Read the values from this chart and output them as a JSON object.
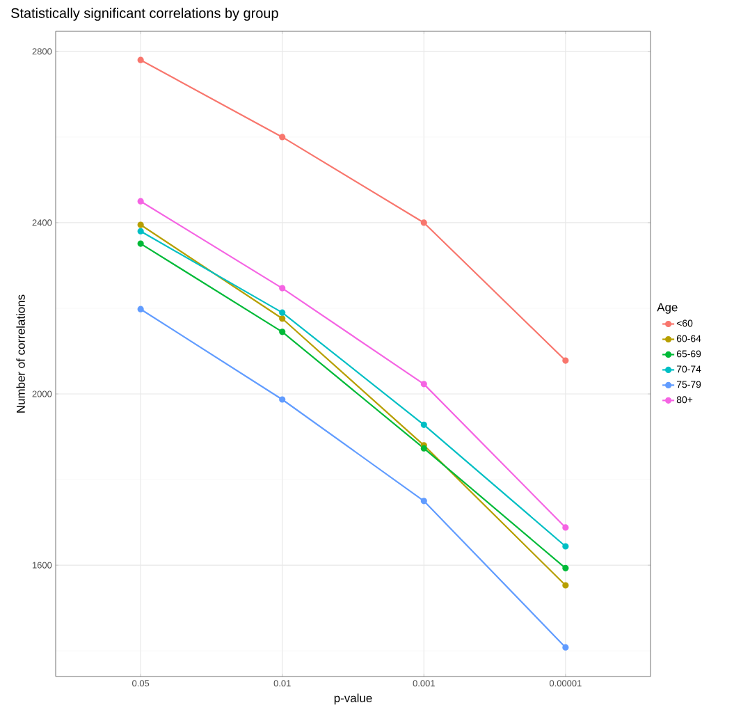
{
  "chart_data": {
    "type": "line",
    "title": "Statistically significant correlations by group",
    "xlabel": "p-value",
    "ylabel": "Number of correlations",
    "legend_title": "Age",
    "categories": [
      "0.05",
      "0.01",
      "0.001",
      "0.00001"
    ],
    "series": [
      {
        "name": "<60",
        "color": "#f8766d",
        "values": [
          2780,
          2600,
          2400,
          2078
        ]
      },
      {
        "name": "60-64",
        "color": "#b79f00",
        "values": [
          2395,
          2176,
          1880,
          1553
        ]
      },
      {
        "name": "65-69",
        "color": "#00ba38",
        "values": [
          2351,
          2145,
          1873,
          1593
        ]
      },
      {
        "name": "70-74",
        "color": "#00bfc4",
        "values": [
          2380,
          2190,
          1928,
          1644
        ]
      },
      {
        "name": "75-79",
        "color": "#619cff",
        "values": [
          2198,
          1987,
          1750,
          1408
        ]
      },
      {
        "name": "80+",
        "color": "#f564e3",
        "values": [
          2450,
          2247,
          2023,
          1688
        ]
      }
    ],
    "ylim": [
      1340,
      2847
    ],
    "yticks": [
      1600,
      2000,
      2400,
      2800
    ],
    "grid": true,
    "legend": "right",
    "marker": "circle",
    "line_style": "solid"
  }
}
